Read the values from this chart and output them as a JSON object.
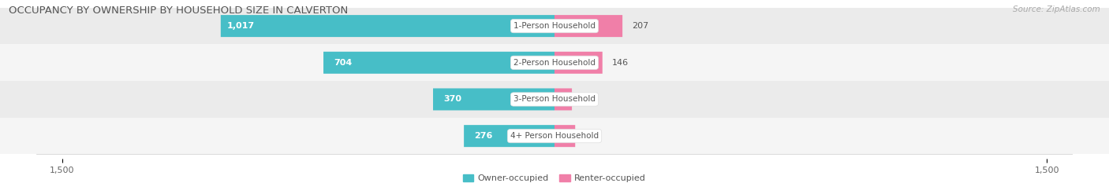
{
  "title": "OCCUPANCY BY OWNERSHIP BY HOUSEHOLD SIZE IN CALVERTON",
  "source": "Source: ZipAtlas.com",
  "categories": [
    "1-Person Household",
    "2-Person Household",
    "3-Person Household",
    "4+ Person Household"
  ],
  "owner_values": [
    1017,
    704,
    370,
    276
  ],
  "renter_values": [
    207,
    146,
    53,
    63
  ],
  "owner_color": "#47bec7",
  "renter_color": "#f07fa8",
  "row_bg_even": "#ebebeb",
  "row_bg_odd": "#f5f5f5",
  "axis_max": 1500,
  "axis_min": -1500,
  "x_tick_labels": [
    "1,500",
    "1,500"
  ],
  "legend_owner": "Owner-occupied",
  "legend_renter": "Renter-occupied",
  "title_fontsize": 9.5,
  "source_fontsize": 7.5,
  "bar_label_fontsize": 8,
  "category_label_fontsize": 7.5,
  "axis_label_fontsize": 8,
  "bar_height": 0.52,
  "figsize": [
    14.06,
    2.33
  ],
  "dpi": 100
}
